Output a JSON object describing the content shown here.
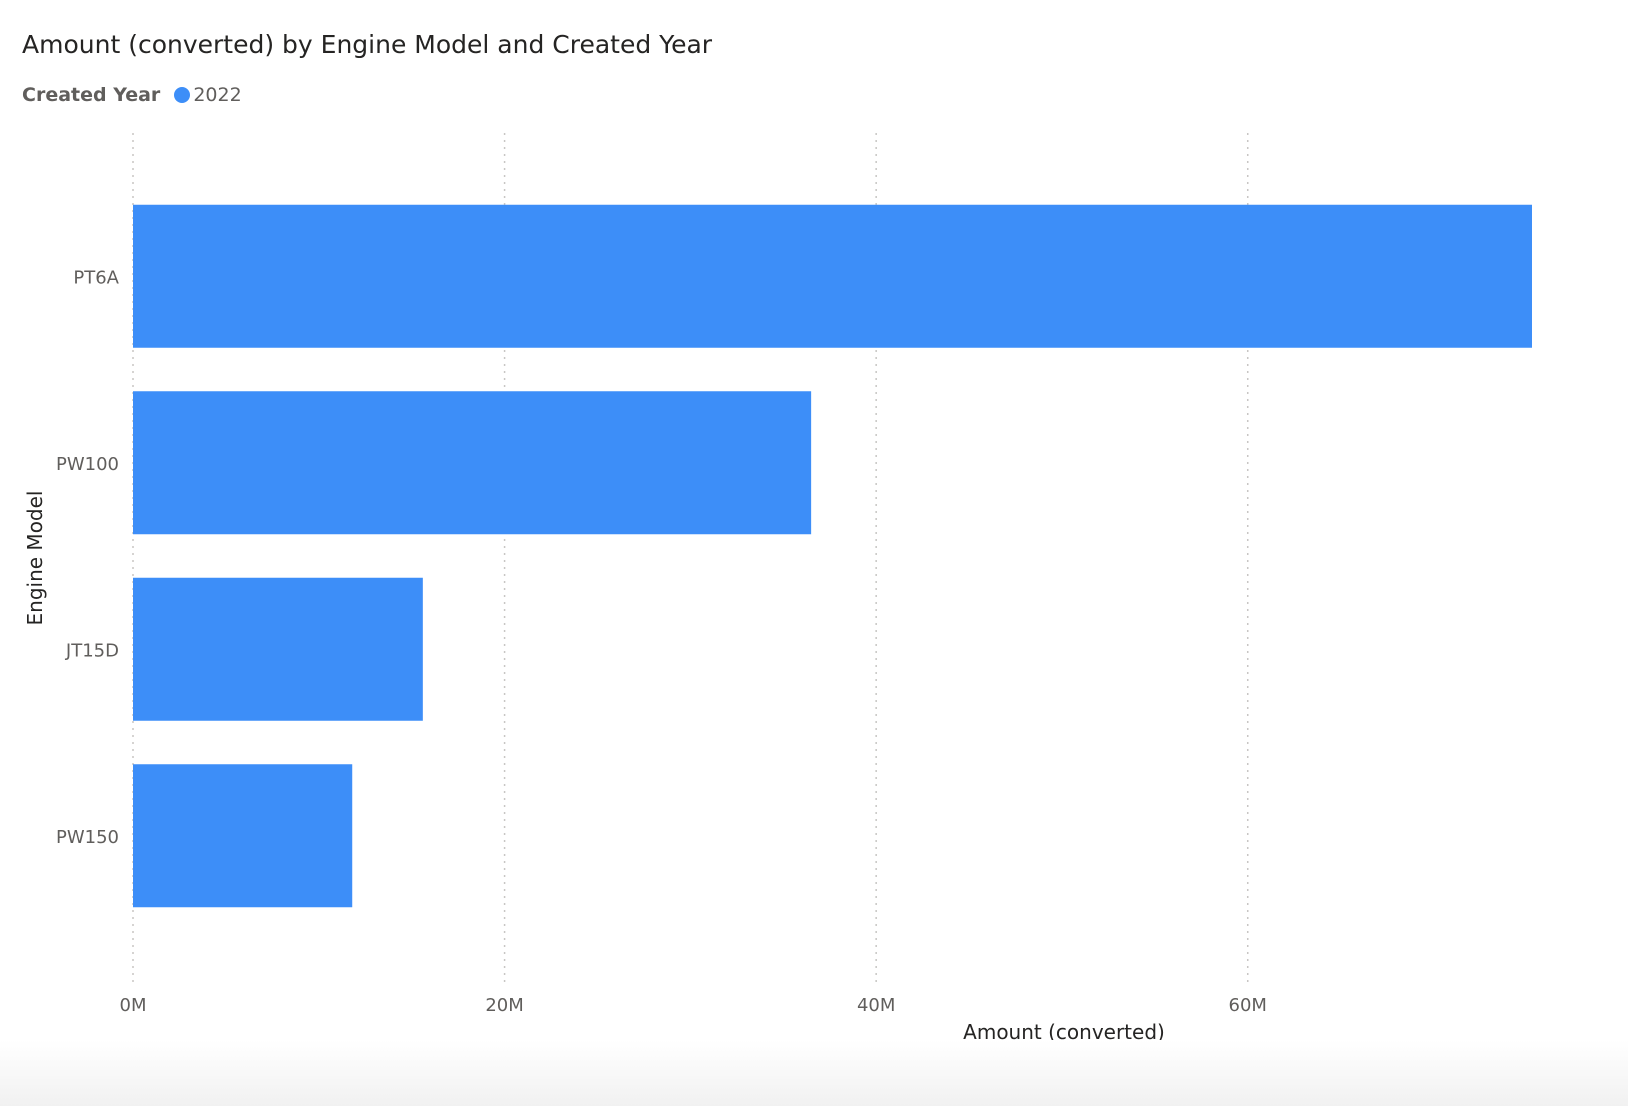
{
  "chart_data": {
    "type": "bar",
    "orientation": "horizontal",
    "title": "Amount (converted) by Engine Model and Created Year",
    "legend": {
      "title": "Created Year",
      "placement": "top-left"
    },
    "categories": [
      "PT6A",
      "PW100",
      "JT15D",
      "PW150"
    ],
    "series": [
      {
        "name": "2022",
        "color": "#3d8ef8",
        "values": [
          75300000,
          36500000,
          15600000,
          11800000
        ]
      }
    ],
    "xlabel": "Amount (converted)",
    "ylabel": "Engine Model",
    "xlim": [
      0,
      75300000
    ],
    "x_ticks": [
      {
        "value": 0,
        "label": "0M"
      },
      {
        "value": 20000000,
        "label": "20M"
      },
      {
        "value": 40000000,
        "label": "40M"
      },
      {
        "value": 60000000,
        "label": "60M"
      }
    ],
    "grid": "vertical-dotted"
  }
}
